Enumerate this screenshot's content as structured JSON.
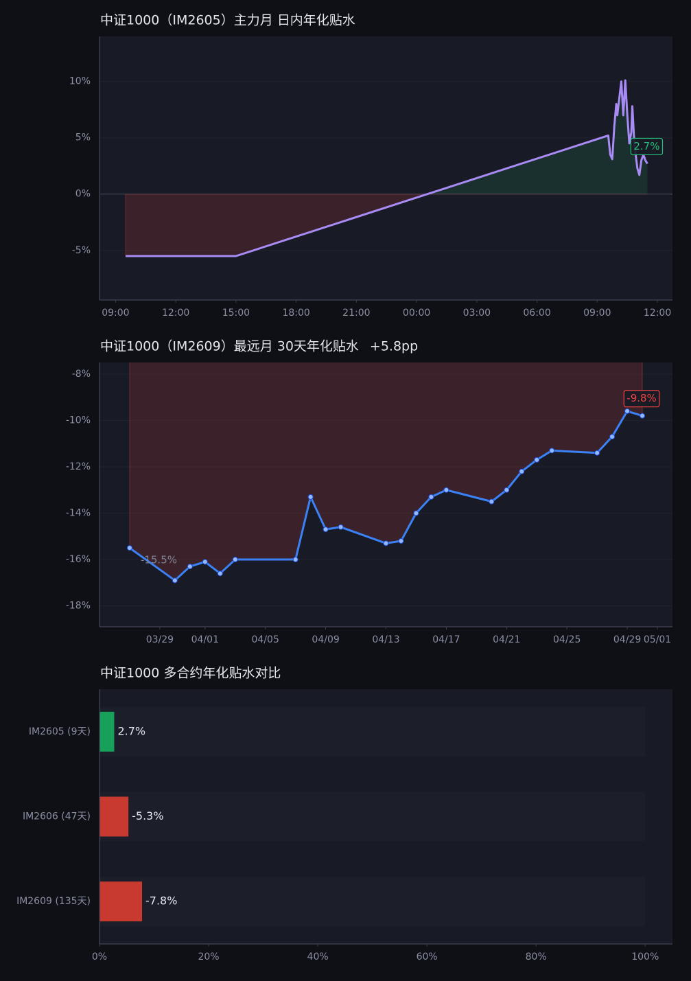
{
  "chart_data": [
    {
      "type": "line",
      "title": "中证1000（IM2605）主力月 日内年化贴水",
      "x": [
        0.5,
        6.0,
        24.55,
        24.65,
        24.75,
        24.85,
        24.95,
        25.0,
        25.1,
        25.2,
        25.3,
        25.4,
        25.5,
        25.6,
        25.7,
        25.75,
        25.85,
        26.0,
        26.1,
        26.2,
        26.3,
        26.4,
        26.5
      ],
      "series": [
        {
          "color": "#a98bf5",
          "values": [
            -5.5,
            -5.5,
            5.2,
            3.5,
            3.1,
            6.0,
            8.0,
            7.0,
            8.5,
            10.0,
            7.0,
            10.1,
            7.0,
            4.5,
            5.5,
            7.8,
            4.5,
            2.3,
            1.7,
            3.0,
            3.5,
            3.0,
            2.7
          ],
          "value_labels": [
            null,
            null,
            null,
            null,
            null,
            null,
            null,
            null,
            null,
            null,
            null,
            null,
            null,
            null,
            null,
            null,
            null,
            null,
            null,
            null,
            null,
            null,
            "2.7%"
          ]
        }
      ],
      "xlim": [
        -0.8,
        27.75
      ],
      "xticks": [
        {
          "value": 0,
          "label": "09:00"
        },
        {
          "value": 3,
          "label": "12:00"
        },
        {
          "value": 6,
          "label": "15:00"
        },
        {
          "value": 9,
          "label": "18:00"
        },
        {
          "value": 12,
          "label": "21:00"
        },
        {
          "value": 15,
          "label": "00:00"
        },
        {
          "value": 18,
          "label": "03:00"
        },
        {
          "value": 21,
          "label": "06:00"
        },
        {
          "value": 24,
          "label": "09:00"
        },
        {
          "value": 27,
          "label": "12:00"
        }
      ],
      "ylim": [
        -9.4,
        14
      ],
      "yticks": [
        {
          "value": -5,
          "label": "-5%"
        },
        {
          "value": 0,
          "label": "0%"
        },
        {
          "value": 5,
          "label": "5%"
        },
        {
          "value": 10,
          "label": "10%"
        }
      ]
    },
    {
      "type": "dateline",
      "title": "中证1000（IM2609）最远月 30天年化贴水",
      "subtitle": "+5.8pp",
      "x": [
        "03/27",
        "03/30",
        "03/31",
        "04/01",
        "04/02",
        "04/03",
        "04/07",
        "04/08",
        "04/09",
        "04/10",
        "04/13",
        "04/14",
        "04/15",
        "04/16",
        "04/17",
        "04/20",
        "04/21",
        "04/22",
        "04/23",
        "04/24",
        "04/27",
        "04/28",
        "04/29",
        "04/30"
      ],
      "series": [
        {
          "color": "#3b82f6",
          "values": [
            -15.5,
            -16.9,
            -16.3,
            -16.1,
            -16.6,
            -16.0,
            -16.0,
            -13.3,
            -14.7,
            -14.6,
            -15.3,
            -15.2,
            -14.0,
            -13.3,
            -13.0,
            -13.5,
            -13.0,
            -12.2,
            -11.7,
            -11.3,
            -11.4,
            -10.7,
            -9.6,
            -9.8
          ],
          "value_labels": [
            "-15.5%",
            null,
            null,
            null,
            null,
            null,
            null,
            null,
            null,
            null,
            null,
            null,
            null,
            null,
            null,
            null,
            null,
            null,
            null,
            null,
            null,
            null,
            null,
            "-9.8%"
          ]
        }
      ],
      "xlim": [
        "03/25",
        "05/02"
      ],
      "xticks": [
        "03/29",
        "04/01",
        "04/05",
        "04/09",
        "04/13",
        "04/17",
        "04/21",
        "04/25",
        "04/29",
        "05/01"
      ],
      "ylim": [
        -18.9,
        -7.5
      ],
      "yticks": [
        {
          "value": -18,
          "label": "-18%"
        },
        {
          "value": -16,
          "label": "-16%"
        },
        {
          "value": -14,
          "label": "-14%"
        },
        {
          "value": -12,
          "label": "-12%"
        },
        {
          "value": -10,
          "label": "-10%"
        },
        {
          "value": -8,
          "label": "-8%"
        }
      ]
    },
    {
      "type": "hbar",
      "title": "中证1000 多合约年化贴水对比",
      "categories": [
        "IM2605 (9天)",
        "IM2606 (47天)",
        "IM2609 (135天)"
      ],
      "values": [
        2.7,
        -5.3,
        -7.8
      ],
      "value_labels": [
        "2.7%",
        "-5.3%",
        "-7.8%"
      ],
      "colors": [
        "#16a05a",
        "#c8392f",
        "#c8392f"
      ],
      "xlim": [
        0,
        105
      ],
      "xticks": [
        {
          "value": 0,
          "label": "0%"
        },
        {
          "value": 20,
          "label": "20%"
        },
        {
          "value": 40,
          "label": "40%"
        },
        {
          "value": 60,
          "label": "60%"
        },
        {
          "value": 80,
          "label": "80%"
        },
        {
          "value": 100,
          "label": "100%"
        }
      ]
    }
  ]
}
